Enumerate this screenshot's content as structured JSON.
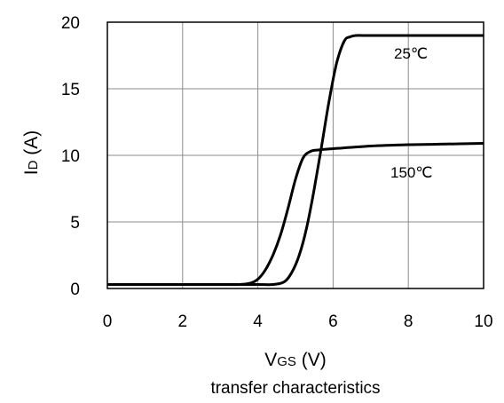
{
  "chart_data": {
    "type": "line",
    "ylabel": {
      "main": "I",
      "sub": "D",
      "unit": " (A)"
    },
    "xlabel": {
      "main": "V",
      "sub": "GS",
      "unit": " (V)"
    },
    "caption": "transfer characteristics",
    "xlim": [
      0,
      10
    ],
    "ylim": [
      0,
      20
    ],
    "xticks": [
      0,
      2,
      4,
      6,
      8,
      10
    ],
    "yticks": [
      0,
      5,
      10,
      15,
      20
    ],
    "grid": true,
    "series": [
      {
        "name": "25℃",
        "x": [
          0,
          1,
          2,
          3,
          4,
          4.4,
          4.7,
          4.9,
          5.1,
          5.3,
          5.5,
          5.7,
          5.9,
          6.1,
          6.3,
          6.45,
          6.6,
          7,
          8,
          9,
          10
        ],
        "y": [
          0.3,
          0.3,
          0.3,
          0.3,
          0.3,
          0.3,
          0.5,
          1.2,
          2.5,
          4.6,
          7.5,
          10.8,
          14.2,
          17.0,
          18.6,
          18.9,
          19.0,
          19.0,
          19.0,
          19.0,
          19.0
        ]
      },
      {
        "name": "150℃",
        "x": [
          0,
          1,
          2,
          3,
          3.5,
          3.8,
          4.0,
          4.2,
          4.4,
          4.6,
          4.8,
          5.0,
          5.2,
          5.4,
          5.6,
          6,
          7,
          8,
          9,
          10
        ],
        "y": [
          0.3,
          0.3,
          0.3,
          0.3,
          0.3,
          0.4,
          0.7,
          1.4,
          2.5,
          4.0,
          6.0,
          8.2,
          9.8,
          10.3,
          10.4,
          10.5,
          10.7,
          10.8,
          10.85,
          10.9
        ]
      }
    ]
  }
}
